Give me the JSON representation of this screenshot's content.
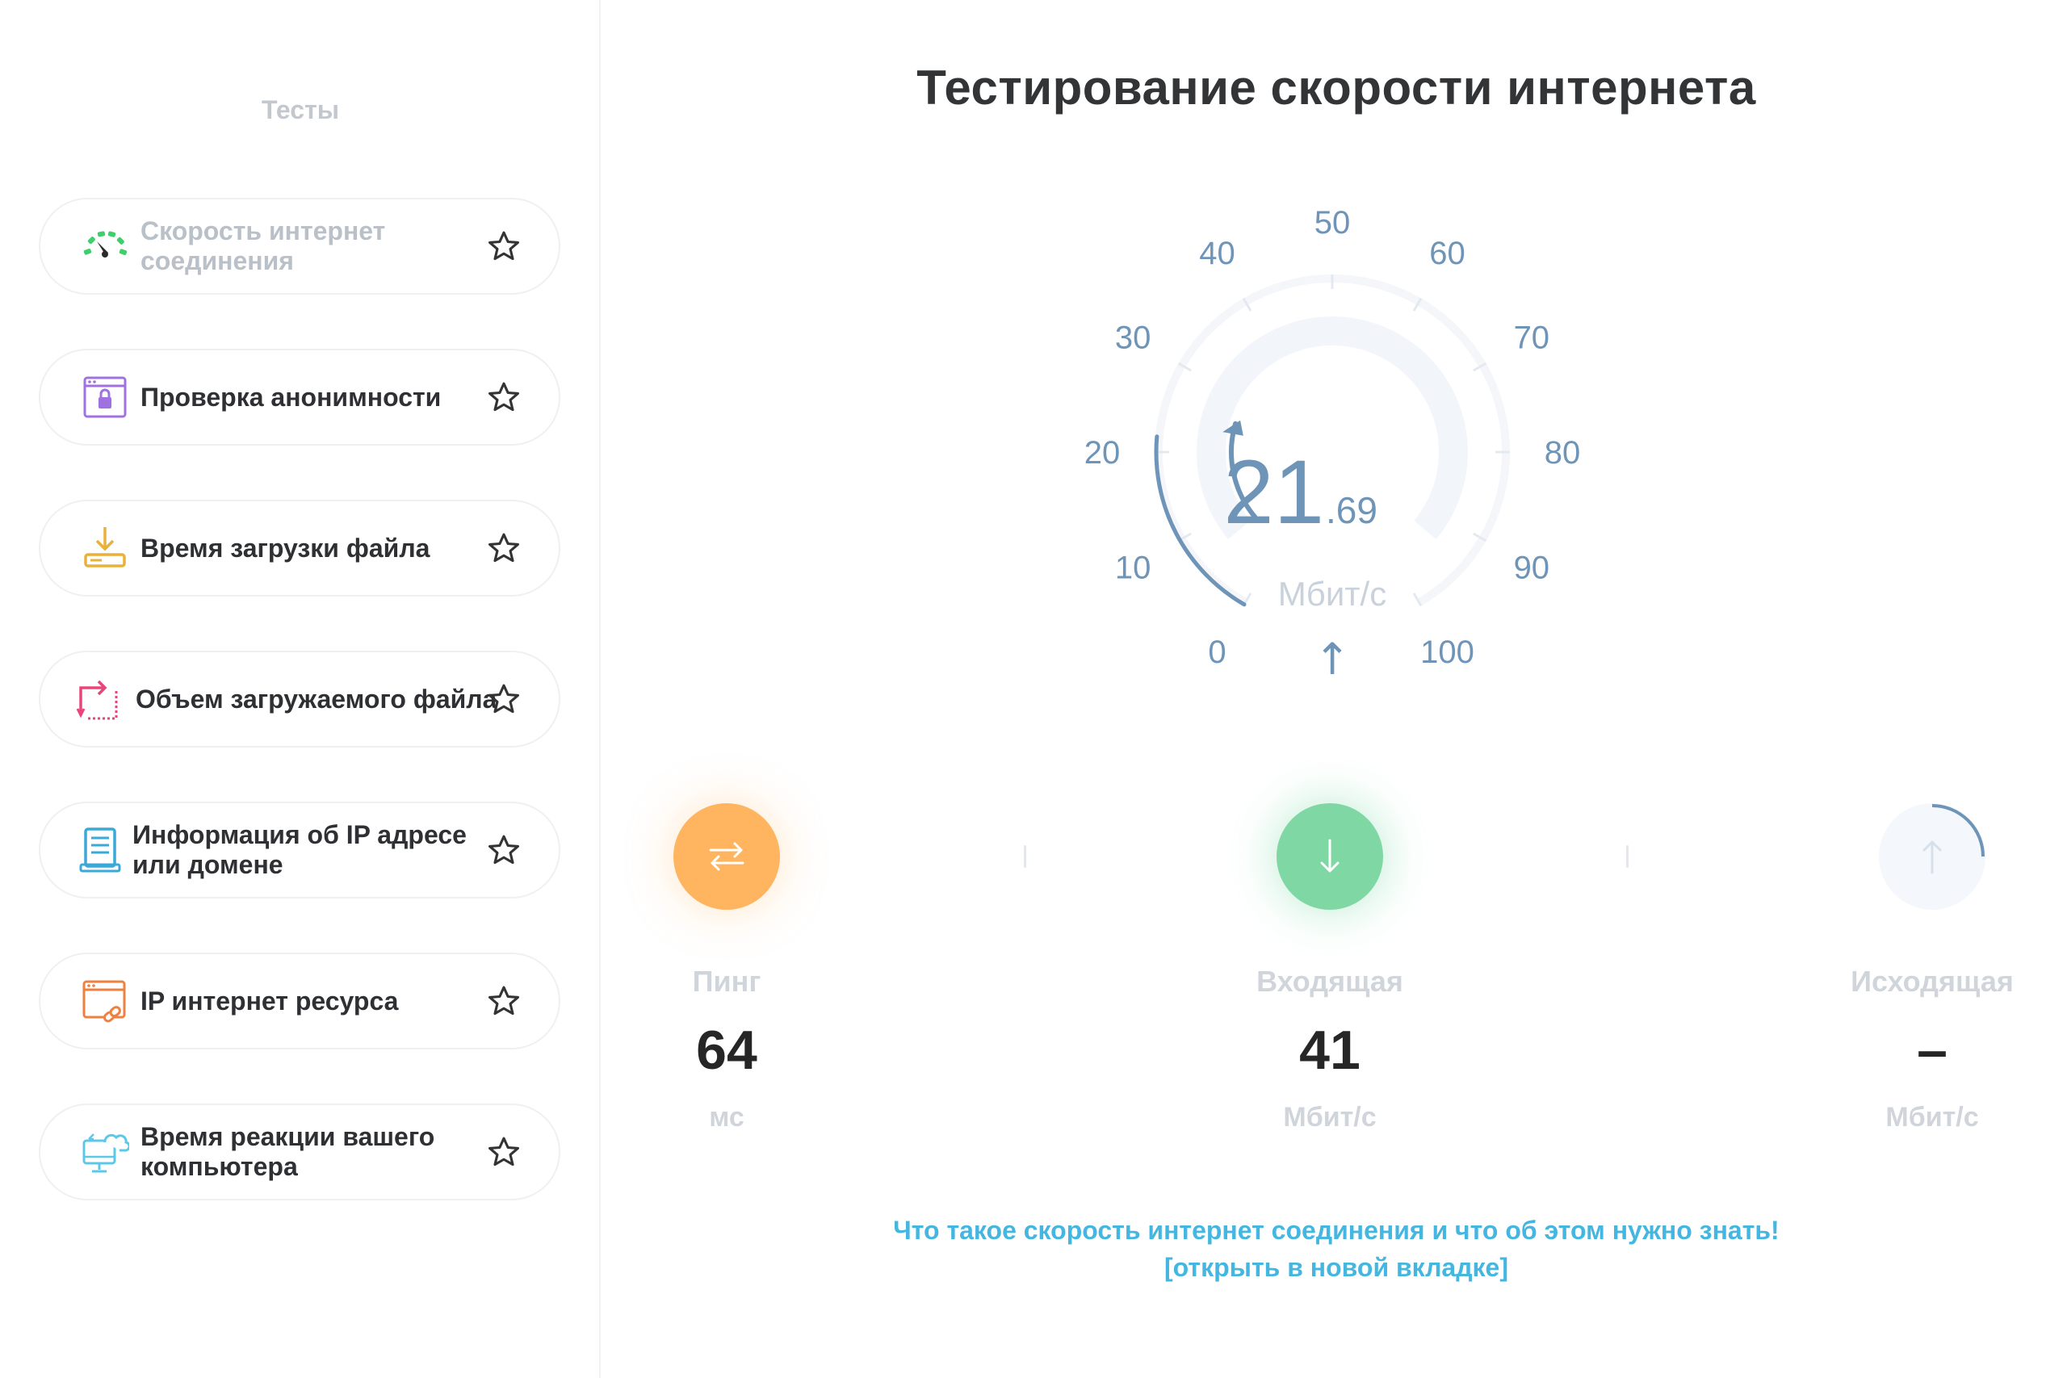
{
  "sidebar": {
    "title": "Тесты",
    "items": [
      {
        "label": "Скорость интернет соединения",
        "icon": "speedometer-icon",
        "active": true
      },
      {
        "label": "Проверка анонимности",
        "icon": "browser-lock-icon"
      },
      {
        "label": "Время загрузки файла",
        "icon": "download-icon"
      },
      {
        "label": "Объем загружаемого файла",
        "icon": "upload-file-icon"
      },
      {
        "label": "Информация об IP адресе или домене",
        "icon": "document-list-icon"
      },
      {
        "label": "IP интернет ресурса",
        "icon": "browser-link-icon"
      },
      {
        "label": "Время реакции вашего компьютера",
        "icon": "computer-cloud-icon"
      }
    ]
  },
  "main": {
    "title": "Тестирование скорости интернета"
  },
  "gauge": {
    "ticks": [
      "0",
      "10",
      "20",
      "30",
      "40",
      "50",
      "60",
      "70",
      "80",
      "90",
      "100"
    ],
    "value_int": "21",
    "value_dec": ".69",
    "unit": "Мбит/с",
    "arrow": "↑",
    "value": 21.69,
    "max": 100
  },
  "stats": {
    "ping": {
      "label": "Пинг",
      "value": "64",
      "unit": "мс"
    },
    "download": {
      "label": "Входящая",
      "value": "41",
      "unit": "Мбит/с"
    },
    "upload": {
      "label": "Исходящая",
      "value": "–",
      "unit": "Мбит/с"
    }
  },
  "info": {
    "text": "Что такое скорость интернет соединения и что об этом нужно знать!",
    "link": "[открыть в новой вкладке]"
  },
  "colors": {
    "accent_blue": "#45b6e0",
    "gauge_blue": "#6e94b8",
    "ping": "#ffb45f",
    "download": "#7fd7a3"
  }
}
